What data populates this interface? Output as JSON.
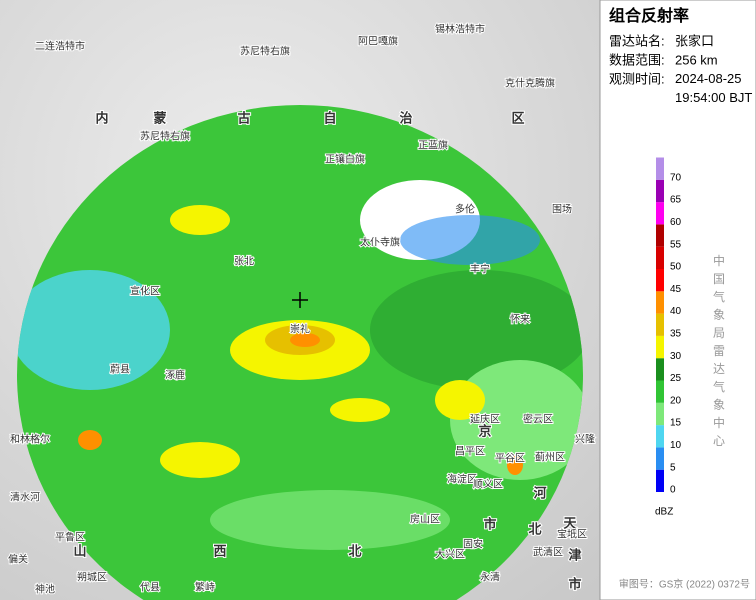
{
  "panel": {
    "title": "组合反射率",
    "rows": [
      {
        "label": "雷达站名:",
        "value": "张家口"
      },
      {
        "label": "数据范围:",
        "value": "256 km"
      },
      {
        "label": "观测时间:",
        "value": "2024-08-25 19:54:00 BJT"
      }
    ]
  },
  "legend": {
    "unit": "dBZ",
    "vertical_text": "中国气象局雷达气象中心",
    "bins": [
      {
        "value": 0,
        "color": "#0000f6"
      },
      {
        "value": 5,
        "color": "#2a8ef2"
      },
      {
        "value": 10,
        "color": "#4fd6f0"
      },
      {
        "value": 15,
        "color": "#7ee87a"
      },
      {
        "value": 20,
        "color": "#31c535"
      },
      {
        "value": 25,
        "color": "#1a8f1e"
      },
      {
        "value": 30,
        "color": "#f5f500"
      },
      {
        "value": 35,
        "color": "#e6c000"
      },
      {
        "value": 40,
        "color": "#ff9000"
      },
      {
        "value": 45,
        "color": "#ff0000"
      },
      {
        "value": 50,
        "color": "#d80000"
      },
      {
        "value": 55,
        "color": "#b00000"
      },
      {
        "value": 60,
        "color": "#ff00f0"
      },
      {
        "value": 65,
        "color": "#9a00b4"
      },
      {
        "value": 70,
        "color": "#b48ee8"
      }
    ]
  },
  "footer": "审图号：GS京 (2022) 0372号",
  "map_labels": [
    "二连浩特市",
    "苏尼特右旗",
    "阿巴嘎旗",
    "锡林浩特市",
    "克什克腾旗",
    "内",
    "蒙",
    "古",
    "自",
    "治",
    "区",
    "苏尼特右旗",
    "正镶白旗",
    "正蓝旗",
    "多伦",
    "围场",
    "太仆寺旗",
    "丰宁",
    "张北",
    "崇礼",
    "怀来",
    "宣化区",
    "蔚县",
    "涿鹿",
    "和林格尔",
    "清水河",
    "偏关",
    "平鲁区",
    "朔城区",
    "神池",
    "代县",
    "繁峙",
    "山",
    "西",
    "北",
    "京",
    "市",
    "河",
    "北",
    "天",
    "津",
    "市",
    "延庆区",
    "昌平区",
    "海淀区",
    "密云区",
    "顺义区",
    "平谷区",
    "蓟州区",
    "房山区",
    "大兴区",
    "固安",
    "永清",
    "武清区",
    "宝坻区",
    "兴隆"
  ]
}
